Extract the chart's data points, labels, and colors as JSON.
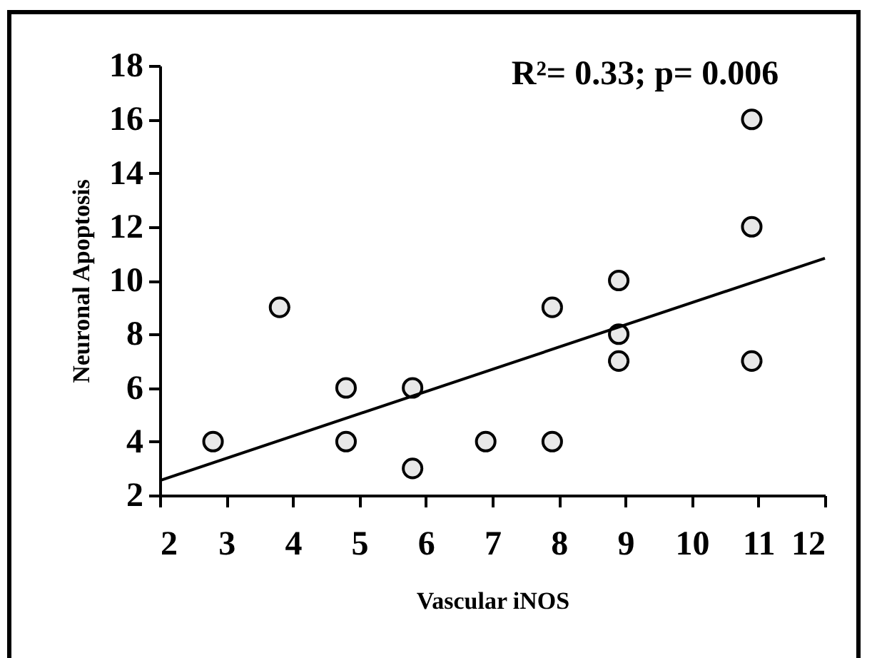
{
  "chart_data": {
    "type": "scatter",
    "xlabel": "Vascular iNOS",
    "ylabel": "Neuronal Apoptosis",
    "annotations": [
      "R²= 0.33; p= 0.006"
    ],
    "xlim": [
      2,
      12
    ],
    "xticks": [
      2,
      3,
      4,
      5,
      6,
      7,
      8,
      9,
      10,
      11,
      12
    ],
    "ylim": [
      2,
      18
    ],
    "yticks": [
      2,
      4,
      6,
      8,
      10,
      12,
      14,
      16,
      18
    ],
    "grid": false,
    "series": [
      {
        "type": "scatter",
        "marker": "circle",
        "color": "#e8e8e8",
        "x": [
          2.8,
          3.8,
          4.8,
          4.8,
          5.8,
          5.8,
          6.9,
          7.9,
          7.9,
          8.9,
          8.9,
          8.9,
          10.9,
          10.9,
          10.9
        ],
        "values": [
          4,
          9,
          6,
          4,
          6,
          3,
          4,
          9,
          4,
          10,
          8,
          7,
          16,
          12,
          7
        ]
      },
      {
        "type": "line",
        "color": "#000000",
        "x": [
          2,
          12
        ],
        "values": [
          2.55,
          10.83
        ]
      }
    ]
  }
}
